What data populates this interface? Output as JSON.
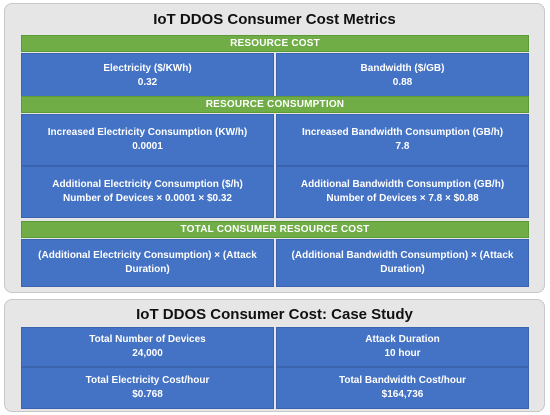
{
  "metrics": {
    "title": "IoT DDOS Consumer Cost Metrics",
    "resource_cost": {
      "header": "RESOURCE COST",
      "left": {
        "label": "Electricity ($/KWh)",
        "value": "0.32"
      },
      "right": {
        "label": "Bandwidth ($/GB)",
        "value": "0.88"
      }
    },
    "resource_consumption": {
      "header": "RESOURCE CONSUMPTION",
      "row1_left": {
        "label": "Increased Electricity Consumption (KW/h)",
        "value": "0.0001"
      },
      "row1_right": {
        "label": "Increased Bandwidth Consumption (GB/h)",
        "value": "7.8"
      },
      "row2_left": {
        "label": "Additional Electricity Consumption ($/h)",
        "value": "Number of Devices × 0.0001 × $0.32"
      },
      "row2_right": {
        "label": "Additional Bandwidth Consumption (GB/h)",
        "value": "Number of Devices × 7.8 × $0.88"
      }
    },
    "total_cost": {
      "header": "TOTAL CONSUMER RESOURCE COST",
      "left": "(Additional Electricity Consumption) × (Attack Duration)",
      "right": "(Additional Bandwidth Consumption) × (Attack Duration)"
    }
  },
  "case_study": {
    "title": "IoT DDOS Consumer Cost: Case Study",
    "devices": {
      "label": "Total Number of Devices",
      "value": "24,000"
    },
    "duration": {
      "label": "Attack Duration",
      "value": "10 hour"
    },
    "electricity": {
      "label": "Total Electricity Cost/hour",
      "value": "$0.768"
    },
    "bandwidth": {
      "label": "Total Bandwidth Cost/hour",
      "value": "$164,736"
    }
  }
}
